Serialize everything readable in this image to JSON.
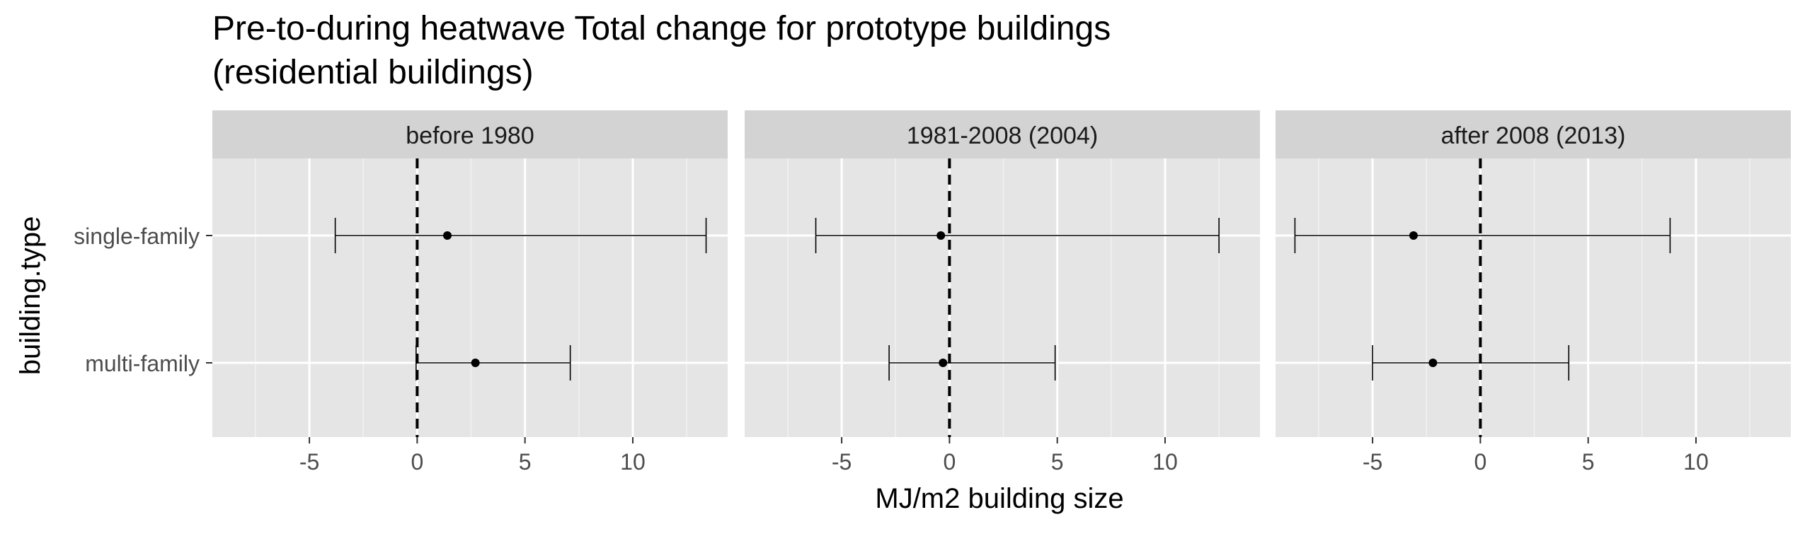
{
  "chart_data": {
    "type": "errorbar",
    "title": "Pre-to-during heatwave Total change for prototype buildings",
    "subtitle": "(residential buildings)",
    "xlabel": "MJ/m2 building size",
    "ylabel": "building.type",
    "categories": [
      "single-family",
      "multi-family"
    ],
    "xlim": [
      -9.5,
      14.4
    ],
    "xticks": [
      -5,
      0,
      5,
      10
    ],
    "minor_xticks": [
      -7.5,
      -2.5,
      2.5,
      7.5,
      12.5
    ],
    "reference_line": {
      "x": 0,
      "style": "dashed"
    },
    "grid": true,
    "legend": "none",
    "facets": [
      {
        "label": "before 1980",
        "points": [
          {
            "category": "single-family",
            "estimate": 1.4,
            "lower": -3.8,
            "upper": 13.4
          },
          {
            "category": "multi-family",
            "estimate": 2.7,
            "lower": -0.05,
            "upper": 7.1
          }
        ]
      },
      {
        "label": "1981-2008 (2004)",
        "points": [
          {
            "category": "single-family",
            "estimate": -0.4,
            "lower": -6.2,
            "upper": 12.5
          },
          {
            "category": "multi-family",
            "estimate": -0.3,
            "lower": -2.8,
            "upper": 4.9
          }
        ]
      },
      {
        "label": "after 2008 (2013)",
        "points": [
          {
            "category": "single-family",
            "estimate": -3.1,
            "lower": -8.6,
            "upper": 8.8
          },
          {
            "category": "multi-family",
            "estimate": -2.2,
            "lower": -5.0,
            "upper": 4.1
          }
        ]
      }
    ],
    "colors": {
      "panel_bg": "#e5e5e5",
      "strip_bg": "#d3d3d3",
      "grid_major": "#ffffff",
      "grid_minor": "#f2f2f2",
      "mark": "#000000",
      "axis_text": "#4d4d4d",
      "title_text": "#000000"
    }
  }
}
